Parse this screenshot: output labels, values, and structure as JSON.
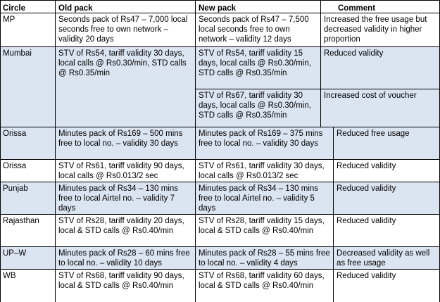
{
  "table": {
    "headers": [
      "Circle",
      "Old pack",
      "New pack",
      "Comment"
    ],
    "rows": [
      {
        "circle": "MP",
        "old": "Seconds pack of Rs47 – 7,000 local seconds free to own network – validity 20 days",
        "new": "Seconds pack of Rs47 – 7,500 local seconds free to own network – validity 12 days",
        "comment": "Increased the free usage but decreased validity in higher proportion"
      },
      {
        "circle": "Mumbai",
        "old": "STV of Rs54, tariff validity 30 days, local calls @ Rs0.30/min, STD calls @ Rs0.35/min",
        "new": "STV of Rs54, tariff validity 15 days, local calls @ Rs0.30/min, STD calls @ Rs0.35/min",
        "comment": "Reduced validity",
        "new_2": "STV of Rs67, tariff validity 30 days, local calls @ Rs0.30/min, STD calls @ Rs0.35/min",
        "comment_2": "Increased cost of voucher"
      },
      {
        "circle": "Orissa",
        "old": "Minutes pack of Rs169 – 500 mins free to local no. – validity 30 days",
        "new": "Minutes pack of Rs169 – 375 mins free to local no. – validity 30 days",
        "comment": "Reduced free usage"
      },
      {
        "circle": "Orissa",
        "old": "STV of Rs61, tariff validity 90 days, local calls @ Rs0.013/2 sec",
        "new": "STV of Rs61, tariff validity 30 days, local calls @ Rs0.013/2 sec",
        "comment": "Reduced validity"
      },
      {
        "circle": "Punjab",
        "old": "Minutes pack of Rs34 – 130 mins free to local Airtel no. – validity 7 days",
        "new": "Minutes pack of Rs34 – 130 mins free to local Airtel no. – validity 5 days",
        "comment": "Reduced validity"
      },
      {
        "circle": "Rajasthan",
        "old": "STV of Rs28, tariff validity 20 days, local & STD calls @ Rs0.40/min",
        "new": "STV of Rs28, tariff validity 15 days, local & STD calls @ Rs0.40/min",
        "comment": "Reduced validity"
      },
      {
        "circle": "UP–W",
        "old": "Minutes pack of Rs28 – 60 mins free to local no. – validity 10 days",
        "new": "Minutes pack of Rs28 – 55 mins free to local no. – validity 4 days",
        "comment": "Decreased validity as well as free usage"
      },
      {
        "circle": "WB",
        "old": "STV of Rs68, tariff validity 90 days, local & STD calls @ Rs0.40/min",
        "new": "STV of Rs68, tariff validity 60 days, local & STD calls @ Rs0.40/min",
        "comment": "Reduced validity"
      }
    ]
  }
}
